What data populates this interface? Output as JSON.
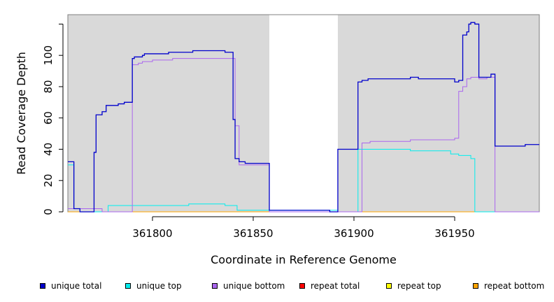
{
  "chart_data": {
    "type": "line",
    "xlabel": "Coordinate in Reference Genome",
    "ylabel": "Read Coverage Depth",
    "xlim": [
      361758,
      361992
    ],
    "ylim": [
      0,
      126
    ],
    "x_ticks": [
      361800,
      361850,
      361900,
      361950
    ],
    "y_ticks": [
      0,
      20,
      40,
      60,
      80,
      100
    ],
    "x_tick_labels": [
      "361800",
      "361850",
      "361900",
      "361950"
    ],
    "y_tick_labels": [
      "0",
      "20",
      "40",
      "60",
      "80",
      "100"
    ],
    "shaded_regions": [
      [
        361758,
        361858
      ],
      [
        361892,
        361992
      ]
    ],
    "plot_background": "#d9d9d9",
    "grid": false,
    "legend_position": "bottom",
    "series": [
      {
        "name": "unique total",
        "color": "#0000cc",
        "x": [
          361758,
          361761,
          361764,
          361768,
          361771,
          361772,
          361773,
          361775,
          361777,
          361780,
          361783,
          361786,
          361790,
          361791,
          361793,
          361795,
          361796,
          361798,
          361808,
          361810,
          361820,
          361834,
          361836,
          361839,
          361840,
          361841,
          361843,
          361846,
          361858,
          361877,
          361888,
          361892,
          361902,
          361904,
          361907,
          361928,
          361932,
          361946,
          361950,
          361952,
          361954,
          361956,
          361957,
          361958,
          361960,
          361962,
          361966,
          361968,
          361970,
          361981,
          361985
        ],
        "y": [
          32,
          2,
          0,
          0,
          38,
          62,
          62,
          64,
          68,
          68,
          69,
          70,
          98,
          99,
          99,
          100,
          101,
          101,
          102,
          102,
          103,
          103,
          102,
          102,
          59,
          34,
          32,
          31,
          1,
          1,
          0,
          40,
          83,
          84,
          85,
          86,
          85,
          85,
          83,
          84,
          113,
          115,
          120,
          121,
          120,
          86,
          86,
          88,
          42,
          42,
          43
        ]
      },
      {
        "name": "unique top",
        "color": "#00eeee",
        "x": [
          361758,
          361761,
          361764,
          361768,
          361770,
          361778,
          361810,
          361818,
          361824,
          361828,
          361836,
          361840,
          361842,
          361845,
          361858,
          361892,
          361902,
          361928,
          361938,
          361948,
          361950,
          361952,
          361957,
          361958,
          361960
        ],
        "y": [
          30,
          2,
          0,
          0,
          0,
          4,
          4,
          5,
          5,
          5,
          4,
          4,
          1,
          1,
          1,
          0,
          40,
          39,
          39,
          37,
          37,
          36,
          36,
          34,
          0
        ]
      },
      {
        "name": "unique bottom",
        "color": "#aa66ee",
        "x": [
          361758,
          361762,
          361775,
          361790,
          361793,
          361795,
          361796,
          361800,
          361810,
          361840,
          361841,
          361843,
          361846,
          361858,
          361892,
          361902,
          361904,
          361908,
          361928,
          361948,
          361950,
          361952,
          361954,
          361956,
          361958,
          361962,
          361966,
          361970
        ],
        "y": [
          2,
          2,
          0,
          94,
          95,
          96,
          96,
          97,
          98,
          98,
          55,
          30,
          30,
          0,
          0,
          0,
          44,
          45,
          46,
          46,
          47,
          77,
          80,
          85,
          86,
          85,
          86,
          0
        ]
      },
      {
        "name": "repeat total",
        "color": "#ff0000",
        "x": [
          361758,
          361992
        ],
        "y": [
          0,
          0
        ]
      },
      {
        "name": "repeat top",
        "color": "#ffff00",
        "x": [
          361758,
          361992
        ],
        "y": [
          0,
          0
        ]
      },
      {
        "name": "repeat bottom",
        "color": "#ffa500",
        "x": [
          361758,
          361992
        ],
        "y": [
          0,
          0
        ]
      }
    ]
  }
}
